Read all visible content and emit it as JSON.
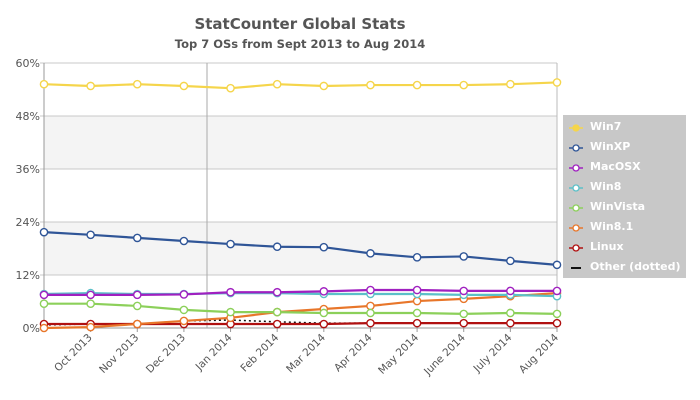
{
  "chart_data": {
    "type": "line",
    "title": "StatCounter Global Stats",
    "subtitle": "Top 7 OSs from Sept 2013 to Aug 2014",
    "xlabel": "",
    "ylabel": "",
    "ylim": [
      0,
      60
    ],
    "y_ticks": [
      "0%",
      "12%",
      "24%",
      "36%",
      "48%",
      "60%"
    ],
    "x": [
      "Sept 2013",
      "Oct 2013",
      "Nov 2013",
      "Dec 2013",
      "Jan 2014",
      "Feb 2014",
      "Mar 2014",
      "Apr 2014",
      "May 2014",
      "June 2014",
      "July 2014",
      "Aug 2014"
    ],
    "x_tick_labels": [
      "Oct 2013",
      "Nov 2013",
      "Dec 2013",
      "Jan 2014",
      "Feb 2014",
      "Mar 2014",
      "Apr 2014",
      "May 2014",
      "June 2014",
      "July 2014",
      "Aug 2014"
    ],
    "legend_position": "right",
    "grid": true,
    "series": [
      {
        "name": "Win7",
        "color": "#f5d54b",
        "values": [
          55.2,
          54.8,
          55.2,
          54.8,
          54.3,
          55.2,
          54.8,
          55.0,
          55.0,
          55.0,
          55.2,
          55.6
        ]
      },
      {
        "name": "WinXP",
        "color": "#2f5597",
        "values": [
          21.7,
          21.1,
          20.4,
          19.7,
          19.0,
          18.4,
          18.3,
          16.9,
          16.0,
          16.2,
          15.2,
          14.3
        ]
      },
      {
        "name": "MacOSX",
        "color": "#a020c0",
        "values": [
          7.5,
          7.5,
          7.5,
          7.6,
          8.1,
          8.1,
          8.3,
          8.6,
          8.6,
          8.4,
          8.4,
          8.4
        ]
      },
      {
        "name": "Win8",
        "color": "#5bc0c8",
        "values": [
          7.7,
          7.9,
          7.7,
          7.7,
          7.9,
          7.9,
          7.7,
          7.7,
          7.7,
          7.5,
          7.5,
          7.2
        ]
      },
      {
        "name": "WinVista",
        "color": "#8cd05a",
        "values": [
          5.5,
          5.5,
          5.0,
          4.1,
          3.6,
          3.6,
          3.4,
          3.4,
          3.4,
          3.2,
          3.4,
          3.2
        ]
      },
      {
        "name": "Win8.1",
        "color": "#e8762a",
        "values": [
          0.0,
          0.2,
          0.9,
          1.6,
          2.3,
          3.6,
          4.3,
          5.0,
          6.1,
          6.6,
          7.2,
          7.9
        ]
      },
      {
        "name": "Linux",
        "color": "#b01010",
        "values": [
          0.9,
          0.9,
          0.9,
          0.9,
          0.9,
          0.9,
          0.9,
          1.1,
          1.1,
          1.1,
          1.1,
          1.1
        ]
      },
      {
        "name": "Other (dotted)",
        "color": "#111111",
        "values": [
          0.7,
          0.9,
          0.9,
          1.6,
          1.8,
          1.4,
          1.1,
          1.1,
          1.1,
          1.1,
          1.1,
          1.1
        ]
      }
    ]
  }
}
